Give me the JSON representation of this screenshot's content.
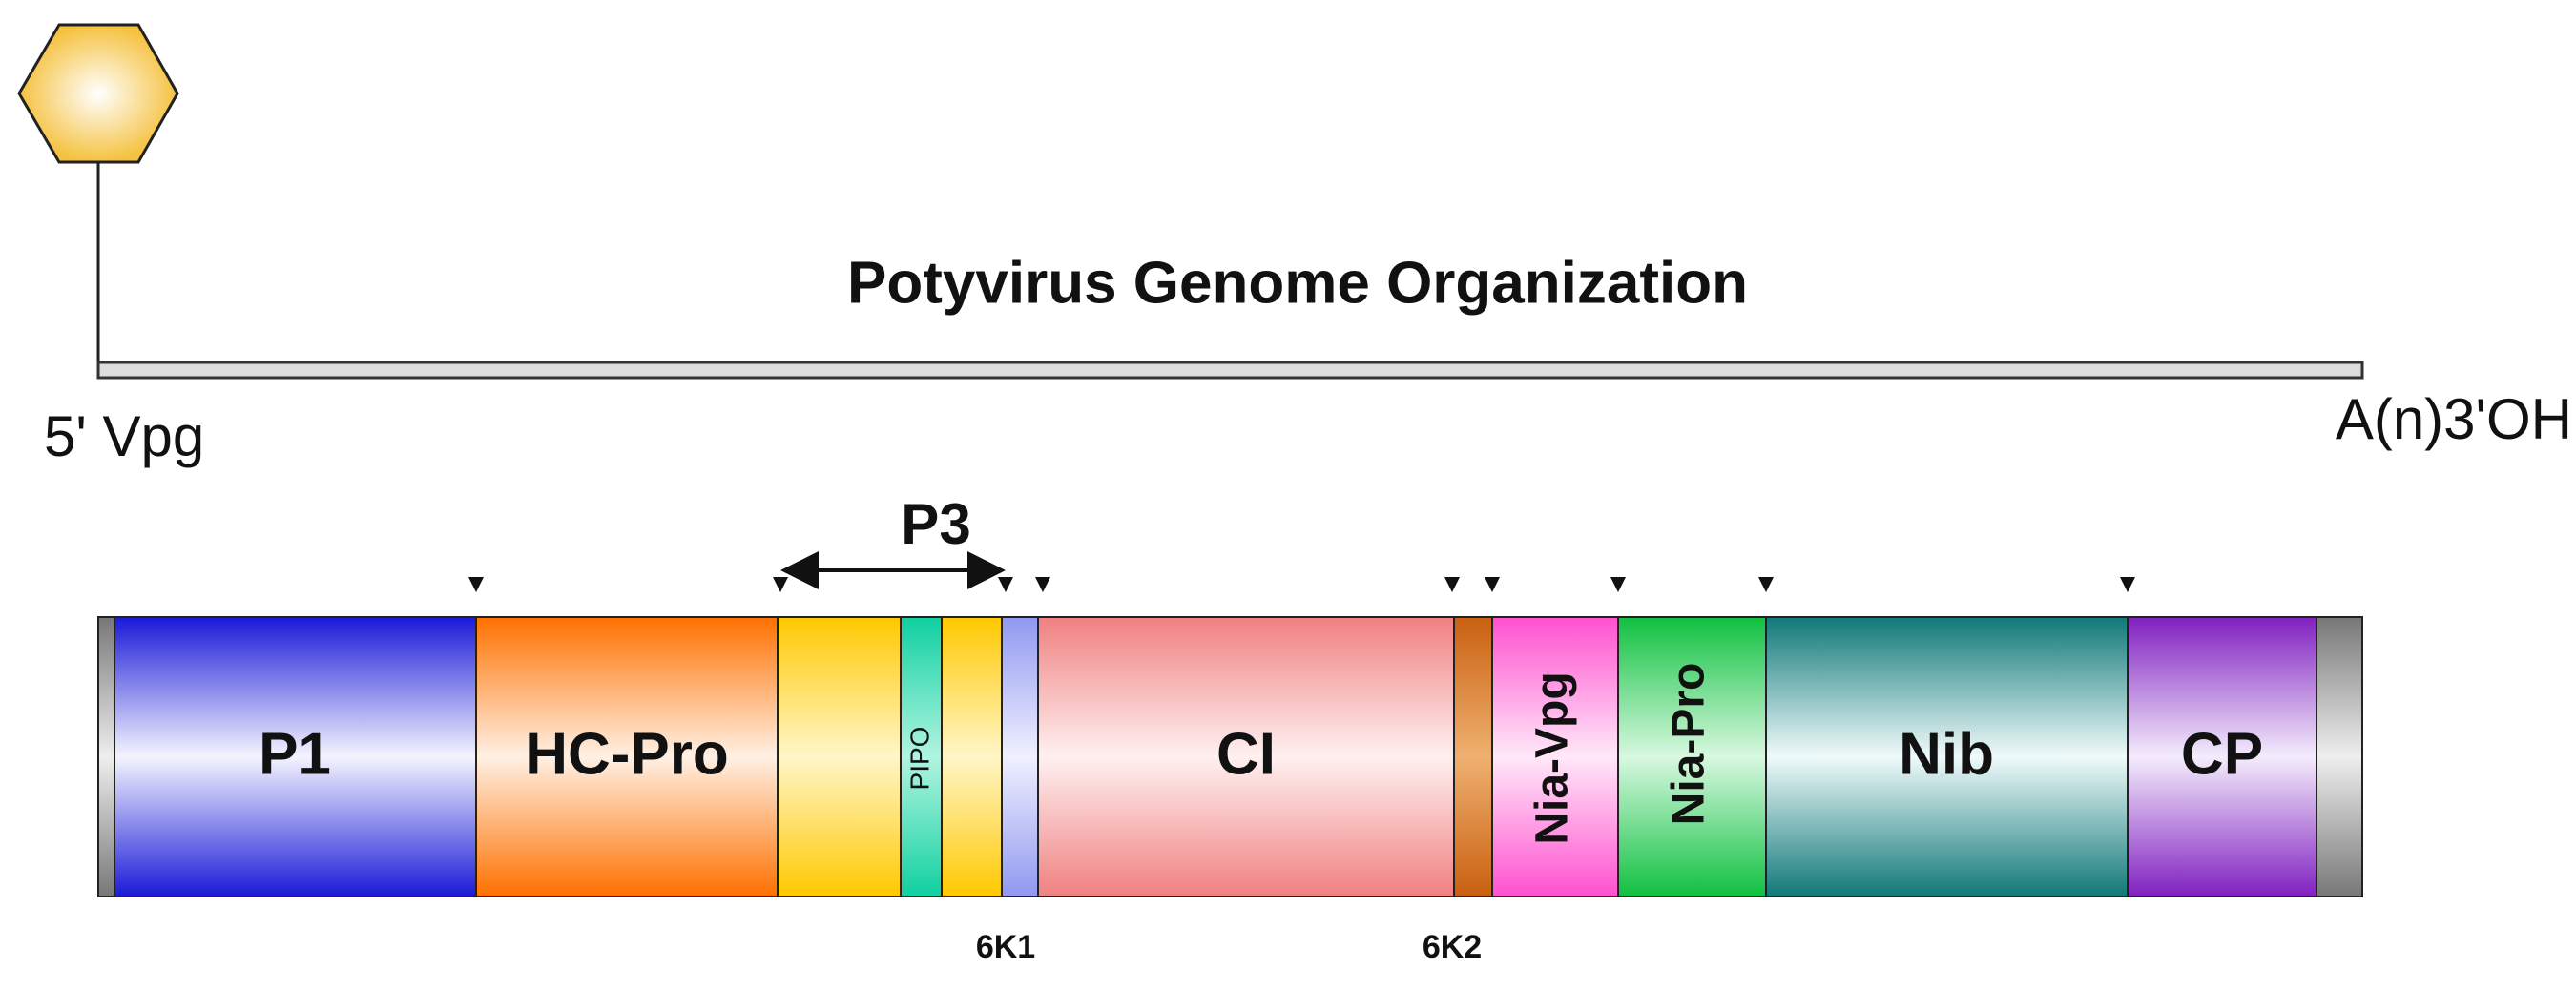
{
  "title": "Potyvirus Genome Organization",
  "five_prime": "5' Vpg",
  "three_prime": "A(n)3'OH",
  "p3": "P3",
  "segments": {
    "p1": "P1",
    "hc_pro": "HC-Pro",
    "pipo": "PIPO",
    "ci": "CI",
    "nia_vpg": "Nia-Vpg",
    "nia_pro": "Nia-Pro",
    "nib": "Nib",
    "cp": "CP"
  },
  "small_labels": {
    "k1": "6K1",
    "k2": "6K2"
  }
}
